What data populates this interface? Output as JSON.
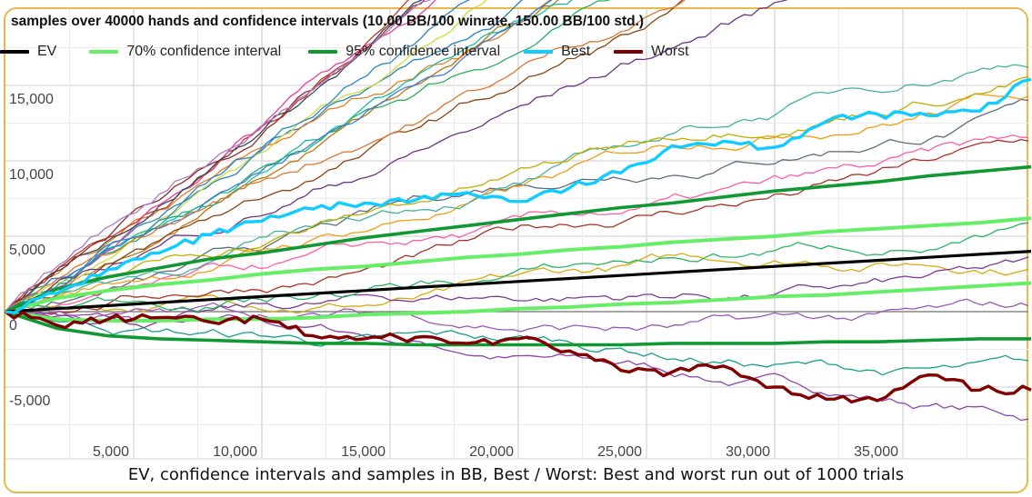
{
  "chart_data": {
    "type": "line",
    "title": "samples over 40000 hands and confidence intervals (10.00 BB/100 winrate, 150.00 BB/100 std.)",
    "caption": "EV, confidence intervals and samples in BB, Best / Worst: Best and worst run out of 1000 trials",
    "xlabel": "",
    "ylabel": "",
    "xlim": [
      0,
      40000
    ],
    "ylim": [
      -7500,
      17500
    ],
    "x_ticks": [
      "5,000",
      "10,000",
      "15,000",
      "20,000",
      "25,000",
      "30,000",
      "35,000"
    ],
    "y_ticks": [
      "15,000",
      "10,000",
      "5,000",
      "0",
      "-5,000"
    ],
    "grid": true,
    "legend_position": "top",
    "legend": [
      {
        "label": "EV",
        "color": "#000000"
      },
      {
        "label": "70% confidence interval",
        "color": "#66ee66"
      },
      {
        "label": "95% confidence interval",
        "color": "#109933"
      },
      {
        "label": "Best",
        "color": "#11ccff"
      },
      {
        "label": "Worst",
        "color": "#800000"
      }
    ],
    "x": [
      0,
      2000,
      4000,
      6000,
      8000,
      10000,
      12000,
      14000,
      16000,
      18000,
      20000,
      22000,
      24000,
      26000,
      28000,
      30000,
      32000,
      34000,
      36000,
      38000,
      40000
    ],
    "series": [
      {
        "name": "EV",
        "values": [
          0,
          200,
          400,
          600,
          800,
          1000,
          1200,
          1400,
          1600,
          1800,
          2000,
          2200,
          2400,
          2600,
          2800,
          3000,
          3200,
          3400,
          3600,
          3800,
          4000
        ]
      },
      {
        "name": "70% upper",
        "values": [
          0,
          900,
          1400,
          1800,
          2100,
          2500,
          2800,
          3000,
          3300,
          3600,
          3800,
          4100,
          4300,
          4600,
          4800,
          5000,
          5300,
          5500,
          5700,
          5900,
          6200
        ]
      },
      {
        "name": "70% lower",
        "values": [
          0,
          -500,
          -600,
          -600,
          -500,
          -500,
          -400,
          -200,
          -100,
          0,
          200,
          300,
          500,
          600,
          800,
          1000,
          1100,
          1300,
          1500,
          1700,
          1900
        ]
      },
      {
        "name": "95% upper",
        "values": [
          0,
          1500,
          2300,
          2900,
          3500,
          3900,
          4400,
          4900,
          5300,
          5700,
          6100,
          6500,
          6900,
          7200,
          7600,
          8000,
          8300,
          8600,
          9000,
          9300,
          9600
        ]
      },
      {
        "name": "95% lower",
        "values": [
          0,
          -1100,
          -1600,
          -1800,
          -1900,
          -2000,
          -2100,
          -2100,
          -2200,
          -2200,
          -2200,
          -2200,
          -2200,
          -2100,
          -2100,
          -2100,
          -2000,
          -2000,
          -1900,
          -1800,
          -1800
        ]
      },
      {
        "name": "Best",
        "values": [
          0,
          1200,
          2800,
          3900,
          5100,
          6000,
          6800,
          7200,
          7400,
          7900,
          7300,
          8200,
          9200,
          11000,
          11300,
          10900,
          12600,
          13100,
          13000,
          13300,
          15400
        ]
      },
      {
        "name": "Worst",
        "values": [
          0,
          -900,
          -500,
          -400,
          -700,
          -500,
          -1600,
          -1800,
          -1700,
          -2100,
          -1800,
          -2600,
          -3900,
          -4000,
          -3600,
          -5000,
          -5800,
          -5900,
          -4200,
          -5200,
          -5200
        ]
      }
    ],
    "samples_note": "About 30 thin multi-colored sample runs fan out between roughly -4,000 and 8,000"
  }
}
